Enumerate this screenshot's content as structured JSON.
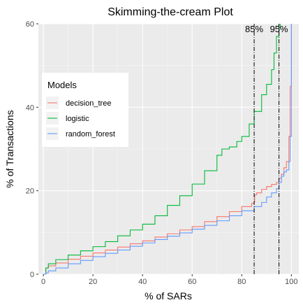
{
  "chart_data": {
    "type": "line",
    "title": "Skimming-the-cream Plot",
    "xlabel": "% of SARs",
    "ylabel": "% of Transactions",
    "xlim": [
      -2,
      103
    ],
    "ylim": [
      0,
      60
    ],
    "xticks": [
      0,
      20,
      40,
      60,
      80,
      100
    ],
    "yticks": [
      0,
      20,
      40,
      60
    ],
    "grid": true,
    "legend": {
      "title": "Models",
      "placement": "left"
    },
    "reference_lines": [
      {
        "x": 85,
        "label": "85%",
        "style": "dotdash"
      },
      {
        "x": 95,
        "label": "95%",
        "style": "dotdash"
      }
    ],
    "series": [
      {
        "name": "decision_tree",
        "color": "#f8766d",
        "x": [
          0,
          1,
          2,
          5,
          10,
          15,
          20,
          25,
          30,
          35,
          40,
          45,
          50,
          55,
          60,
          65,
          70,
          75,
          80,
          84,
          85,
          85.2,
          86,
          88,
          90,
          92,
          94,
          95,
          96,
          97,
          98,
          99,
          99.5,
          100,
          100
        ],
        "y": [
          0,
          1.5,
          2,
          2.7,
          3.6,
          4.3,
          5.1,
          5.8,
          6.5,
          7.3,
          8,
          8.9,
          9.7,
          10.6,
          11.4,
          12.6,
          13.8,
          15,
          16.2,
          17,
          17.3,
          19,
          19.5,
          20.3,
          21,
          21.5,
          22,
          23,
          24,
          25.5,
          27,
          33,
          45,
          55,
          60
        ]
      },
      {
        "name": "logistic",
        "color": "#00ba38",
        "x": [
          0,
          1,
          2,
          5,
          10,
          15,
          20,
          25,
          30,
          35,
          40,
          45,
          50,
          55,
          60,
          65,
          70,
          72,
          75,
          78,
          80,
          83,
          85,
          88,
          90,
          92,
          93,
          94,
          95,
          95.5
        ],
        "y": [
          0,
          1.5,
          2.5,
          3.5,
          4.6,
          5.6,
          6.6,
          7.8,
          9.2,
          10.6,
          12,
          14,
          16.5,
          18.8,
          21.6,
          24.8,
          28.5,
          30,
          30.5,
          31.8,
          33,
          36,
          39,
          43,
          45.5,
          49,
          53,
          57,
          59,
          60
        ]
      },
      {
        "name": "random_forest",
        "color": "#619cff",
        "x": [
          0,
          1,
          2,
          5,
          10,
          15,
          20,
          25,
          30,
          35,
          40,
          45,
          50,
          55,
          60,
          65,
          70,
          75,
          80,
          85,
          88,
          90,
          92,
          94,
          95,
          96,
          97,
          98,
          99,
          99.5,
          100,
          100
        ],
        "y": [
          0,
          0.3,
          0.8,
          1.5,
          2.5,
          3.3,
          4.2,
          5,
          5.8,
          6.7,
          7.5,
          8.3,
          9.1,
          9.9,
          10.8,
          11.7,
          12.8,
          14,
          15.2,
          16.2,
          17.2,
          18.5,
          19.5,
          20.5,
          22,
          23.5,
          24.5,
          25,
          27,
          33,
          45,
          60
        ]
      }
    ]
  }
}
